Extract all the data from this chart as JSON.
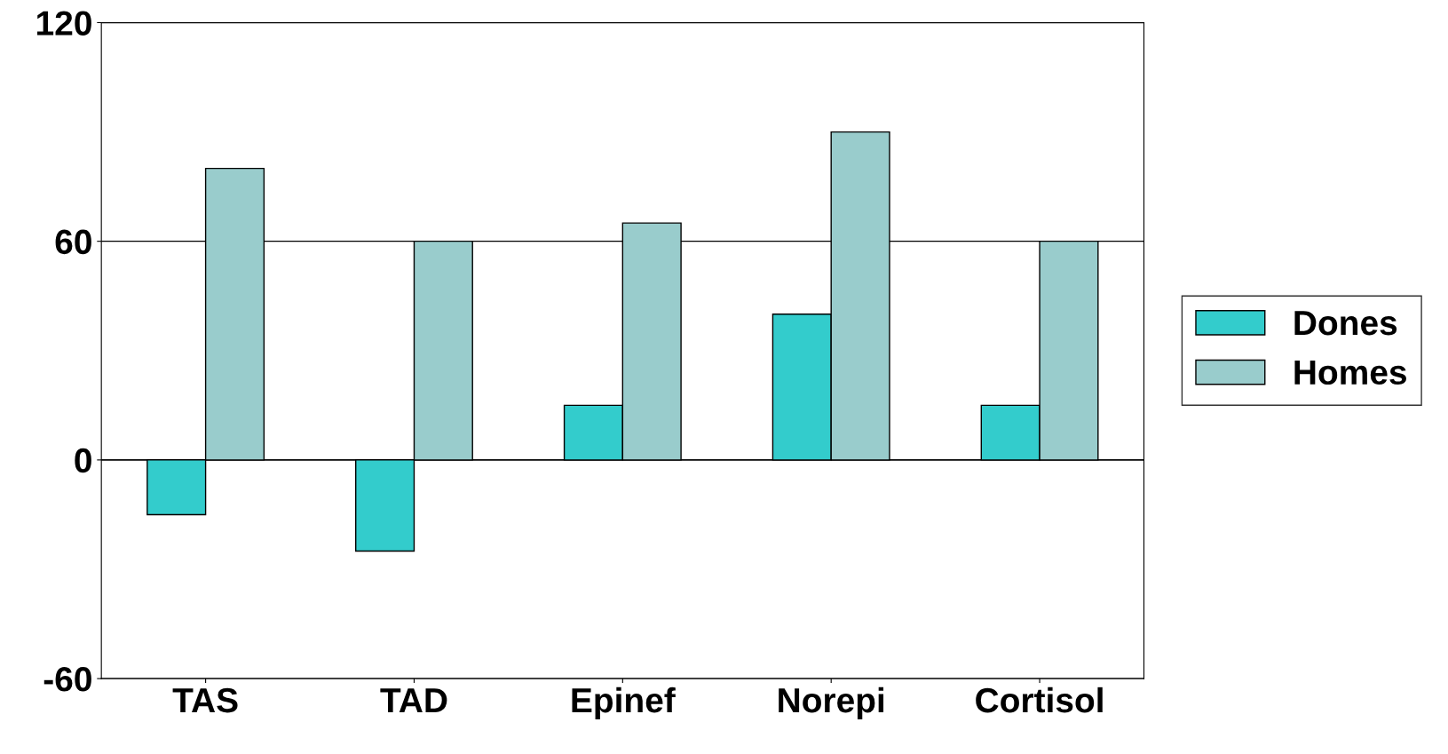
{
  "chart_data": {
    "type": "bar",
    "categories": [
      "TAS",
      "TAD",
      "Epinef",
      "Norepi",
      "Cortisol"
    ],
    "series": [
      {
        "name": "Dones",
        "color": "#33cccc",
        "values": [
          -15,
          -25,
          15,
          40,
          15
        ]
      },
      {
        "name": "Homes",
        "color": "#99cccc",
        "values": [
          80,
          60,
          65,
          90,
          60
        ]
      }
    ],
    "ylim": [
      -60,
      120
    ],
    "yticks": [
      -60,
      0,
      60,
      120
    ],
    "grid": "y",
    "legend": "right"
  }
}
